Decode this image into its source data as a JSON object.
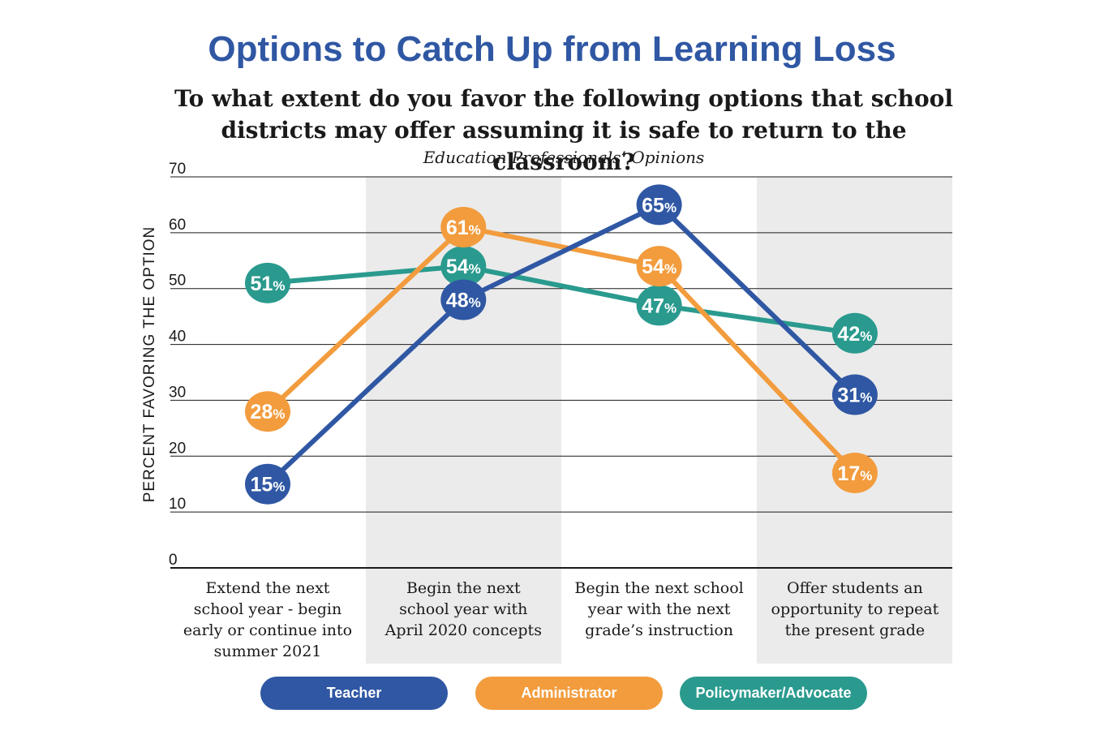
{
  "colors": {
    "teacher": "#2f57a3",
    "administrator": "#f29c3e",
    "policymaker": "#2a9a8e",
    "band": "#ebebeb",
    "gridline": "#1a1a1a"
  },
  "chart_data": {
    "type": "line",
    "title": "Options to Catch Up from Learning Loss",
    "subtitle": "To what extent do you favor the following options that school districts may offer assuming it is safe to return to the classroom?",
    "caption": "Education Professionals’ Opinions",
    "ylabel": "PERCENT FAVORING THE OPTION",
    "xlabel": "",
    "ylim": [
      0,
      70
    ],
    "yticks": [
      0,
      10,
      20,
      30,
      40,
      50,
      60,
      70
    ],
    "grid": true,
    "legend_position": "bottom",
    "value_suffix": "%",
    "categories": [
      [
        "Extend the next",
        "school year - begin",
        "early or continue into",
        "summer 2021"
      ],
      [
        "Begin the next",
        "school year with",
        "April 2020 concepts"
      ],
      [
        "Begin the next school",
        "year with the next",
        "grade’s instruction"
      ],
      [
        "Offer students an",
        "opportunity to repeat",
        "the present grade"
      ]
    ],
    "series": [
      {
        "name": "Teacher",
        "key": "teacher",
        "values": [
          15,
          48,
          65,
          31
        ]
      },
      {
        "name": "Administrator",
        "key": "administrator",
        "values": [
          28,
          61,
          54,
          17
        ]
      },
      {
        "name": "Policymaker/Advocate",
        "key": "policymaker",
        "values": [
          51,
          54,
          47,
          42
        ]
      }
    ]
  }
}
